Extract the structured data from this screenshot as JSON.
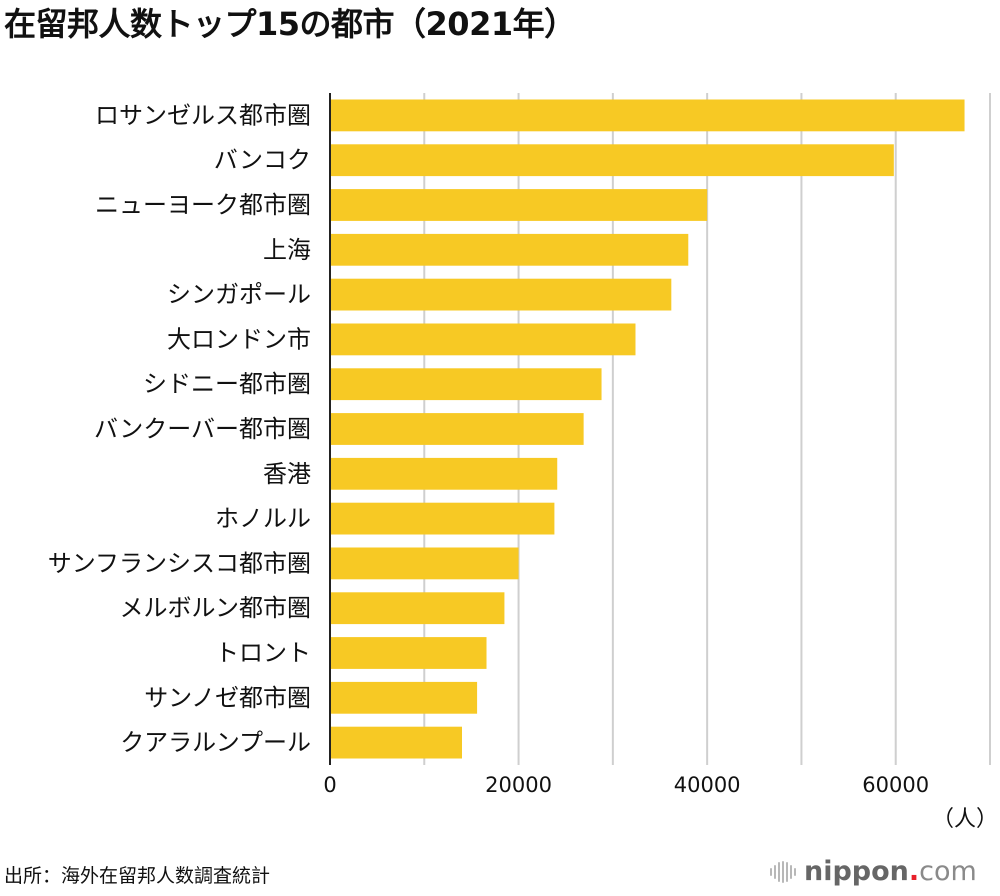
{
  "title": "在留邦人数トップ15の都市（2021年）",
  "source": "出所：海外在留邦人数調査統計",
  "logo": {
    "icon": "sound-bars-icon",
    "name": "nippon",
    "dot": ".",
    "tld": "com",
    "colors": {
      "name": "#666666",
      "dot": "#e8202a",
      "tld": "#8a8a8a"
    }
  },
  "chart_data": {
    "type": "bar",
    "orientation": "horizontal",
    "title": "在留邦人数トップ15の都市（2021年）",
    "xlabel": "（人）",
    "ylabel": "",
    "xlim": [
      0,
      70000
    ],
    "xticks": [
      0,
      20000,
      40000,
      60000
    ],
    "xtick_labels": [
      "0",
      "20000",
      "40000",
      "60000"
    ],
    "gridlines": [
      10000,
      20000,
      30000,
      40000,
      50000,
      60000,
      70000
    ],
    "grid": true,
    "legend": "none",
    "bar_color": "#F7C924",
    "categories": [
      "ロサンゼルス都市圏",
      "バンコク",
      "ニューヨーク都市圏",
      "上海",
      "シンガポール",
      "大ロンドン市",
      "シドニー都市圏",
      "バンクーバー都市圏",
      "香港",
      "ホノルル",
      "サンフランシスコ都市圏",
      "メルボルン都市圏",
      "トロント",
      "サンノゼ都市圏",
      "クアラルンプール"
    ],
    "values": [
      67300,
      59800,
      40000,
      38000,
      36200,
      32400,
      28800,
      26900,
      24100,
      23800,
      20000,
      18500,
      16600,
      15600,
      14000
    ],
    "source": "出所：海外在留邦人数調査統計"
  }
}
